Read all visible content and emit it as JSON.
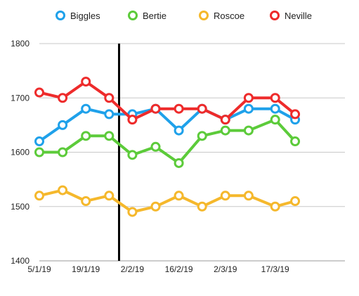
{
  "chart_data": {
    "type": "line",
    "x": [
      "5/1/19",
      "12/1/19",
      "19/1/19",
      "26/1/19",
      "2/2/19",
      "9/2/19",
      "16/2/19",
      "23/2/19",
      "2/3/19",
      "9/3/19",
      "17/3/19",
      "23/3/19"
    ],
    "x_tick_labels": [
      "5/1/19",
      "19/1/19",
      "2/2/19",
      "16/2/19",
      "2/3/19",
      "17/3/19"
    ],
    "x_range": [
      "5/1/19",
      "7/4/19"
    ],
    "y_ticks": [
      1400,
      1500,
      1600,
      1700,
      1800
    ],
    "ylim": [
      1400,
      1800
    ],
    "grid": "horizontal",
    "legend": "top",
    "vertical_marker": {
      "x": "29/1/19",
      "color": "#000000"
    },
    "series": [
      {
        "name": "Biggles",
        "color": "#1fa1ea",
        "values": [
          1620,
          1650,
          1680,
          1670,
          1670,
          1680,
          1640,
          1680,
          1660,
          1680,
          1680,
          1660
        ]
      },
      {
        "name": "Bertie",
        "color": "#5ccb3a",
        "values": [
          1600,
          1600,
          1630,
          1630,
          1595,
          1610,
          1580,
          1630,
          1640,
          1640,
          1660,
          1620
        ]
      },
      {
        "name": "Roscoe",
        "color": "#f5b82c",
        "values": [
          1520,
          1530,
          1510,
          1520,
          1490,
          1500,
          1520,
          1500,
          1520,
          1520,
          1500,
          1510
        ]
      },
      {
        "name": "Neville",
        "color": "#ee2b2b",
        "values": [
          1710,
          1700,
          1730,
          1700,
          1660,
          1680,
          1680,
          1680,
          1660,
          1700,
          1700,
          1670
        ]
      }
    ]
  }
}
